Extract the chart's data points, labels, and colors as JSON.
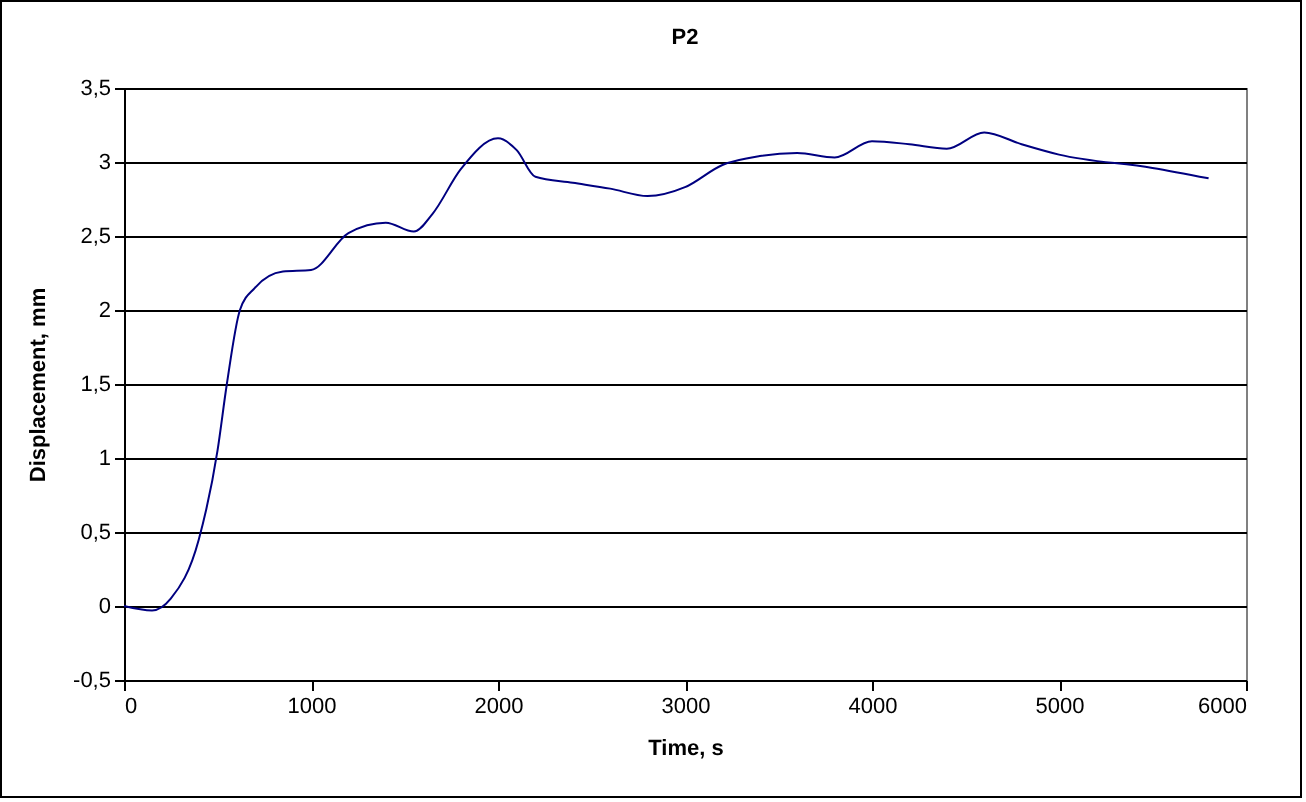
{
  "chart_data": {
    "type": "line",
    "title": "P2",
    "xlabel": "Time, s",
    "ylabel": "Displacement, mm",
    "x": [
      0,
      150,
      250,
      400,
      500,
      550,
      620,
      700,
      850,
      1000,
      1200,
      1400,
      1550,
      1650,
      1800,
      2000,
      2100,
      2200,
      2400,
      2600,
      2800,
      3000,
      3200,
      3400,
      3600,
      3800,
      4000,
      4200,
      4400,
      4600,
      4800,
      5000,
      5500,
      5800
    ],
    "series": [
      {
        "color": "#000080",
        "values": [
          0,
          -0.03,
          0.05,
          0.45,
          1.05,
          1.5,
          2.0,
          2.15,
          2.26,
          2.27,
          2.52,
          2.59,
          2.53,
          2.65,
          2.95,
          3.16,
          3.08,
          2.9,
          2.86,
          2.82,
          2.77,
          2.83,
          2.98,
          3.04,
          3.06,
          3.03,
          3.14,
          3.12,
          3.09,
          3.2,
          3.12,
          3.05,
          2.96,
          2.89
        ]
      }
    ],
    "xlim": [
      0,
      6000
    ],
    "xticks": [
      0,
      1000,
      2000,
      3000,
      4000,
      5000,
      6000
    ],
    "ylim": [
      -0.5,
      3.5
    ],
    "yticks": [
      {
        "value": -0.5,
        "label": "-0,5"
      },
      0,
      {
        "value": 0.5,
        "label": "0,5"
      },
      1,
      {
        "value": 1.5,
        "label": "1,5"
      },
      2,
      {
        "value": 2.5,
        "label": "2,5"
      },
      3,
      {
        "value": 3.5,
        "label": "3,5"
      }
    ],
    "grid": "y",
    "marker": "none",
    "line_style": "solid"
  }
}
